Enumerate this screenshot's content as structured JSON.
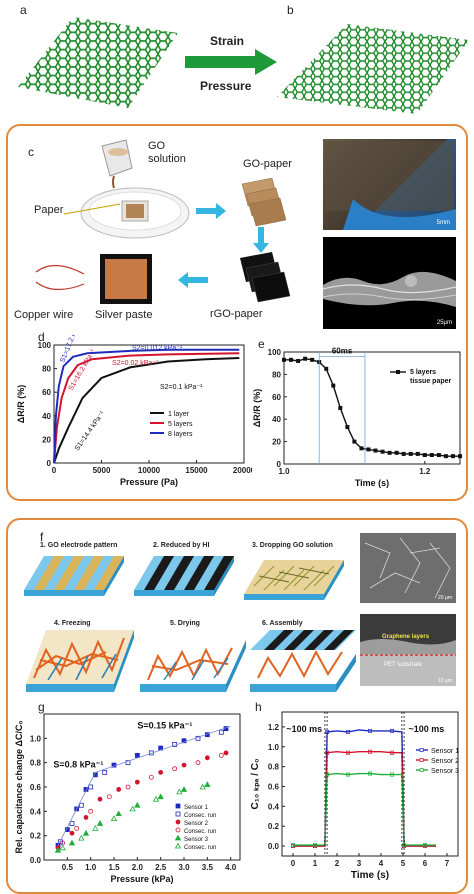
{
  "panels": {
    "a": "a",
    "b": "b",
    "c": "c",
    "d": "d",
    "e": "e",
    "f": "f",
    "g": "g",
    "h": "h"
  },
  "top": {
    "strain": "Strain",
    "pressure": "Pressure"
  },
  "c": {
    "go_solution": "GO\nsolution",
    "paper": "Paper",
    "go_paper": "GO-paper",
    "rgo_paper": "rGO-paper",
    "copper_wire": "Copper wire",
    "silver_paste": "Silver paste",
    "scale_top": "5mm",
    "scale_bottom": "25µm"
  },
  "f": {
    "step1": "1. GO electrode pattern",
    "step2": "2. Reduced by HI",
    "step3": "3. Dropping GO solution",
    "step4": "4. Freezing",
    "step5": "5. Drying",
    "step6": "6. Assembly",
    "scale_top": "20 µm",
    "scale_bottom": "10 µm",
    "graphene_layers": "Graphene layers",
    "pet_substrate": "PET substrate"
  },
  "chart_data": [
    {
      "panel": "d",
      "type": "line",
      "xlabel": "Pressure (Pa)",
      "ylabel": "ΔR/R (%)",
      "xlim": [
        0,
        20000
      ],
      "ylim": [
        0,
        100
      ],
      "xticks": [
        "0",
        "5000",
        "10000",
        "15000",
        "20000"
      ],
      "yticks": [
        "0",
        "20",
        "40",
        "60",
        "80",
        "100"
      ],
      "legend_position": "center-right",
      "series": [
        {
          "name": "1 layer",
          "color": "#111111",
          "x": [
            0,
            500,
            1500,
            3000,
            5000,
            8000,
            12000,
            16000,
            19500
          ],
          "y": [
            0,
            12,
            30,
            55,
            72,
            81,
            86,
            88,
            89
          ]
        },
        {
          "name": "5 layers",
          "color": "#d4142e",
          "x": [
            0,
            300,
            800,
            1500,
            2500,
            4000,
            8000,
            12000,
            19500
          ],
          "y": [
            0,
            30,
            55,
            72,
            83,
            88,
            91,
            92,
            93
          ]
        },
        {
          "name": "8 layers",
          "color": "#1f2bbf",
          "x": [
            0,
            200,
            500,
            1000,
            2000,
            3500,
            8000,
            12000,
            19500
          ],
          "y": [
            0,
            40,
            65,
            82,
            90,
            93,
            95,
            96,
            96
          ]
        }
      ],
      "annotations": [
        {
          "text": "S2=0.012 kPa⁻¹",
          "color": "#1f2bbf"
        },
        {
          "text": "S2=0.02 kPa⁻¹",
          "color": "#d4142e"
        },
        {
          "text": "S2=0.1 kPa⁻¹",
          "color": "#111111"
        },
        {
          "text": "S1=17.2 kPa⁻¹",
          "color": "#1f2bbf"
        },
        {
          "text": "S1=16.2 kPa⁻¹",
          "color": "#d4142e"
        },
        {
          "text": "S1=14.4 kPa⁻¹",
          "color": "#111111"
        }
      ]
    },
    {
      "panel": "e",
      "type": "line",
      "xlabel": "Time (s)",
      "ylabel": "ΔR/R (%)",
      "xlim": [
        1.0,
        1.25
      ],
      "ylim": [
        0,
        100
      ],
      "xticks": [
        "1.0",
        "1.2"
      ],
      "yticks": [
        "0",
        "20",
        "40",
        "60",
        "80",
        "100"
      ],
      "legend_position": "top-right",
      "series": [
        {
          "name": "5 layers\ntissue paper",
          "color": "#111111",
          "x": [
            1.0,
            1.01,
            1.02,
            1.03,
            1.04,
            1.05,
            1.06,
            1.07,
            1.08,
            1.09,
            1.1,
            1.11,
            1.12,
            1.13,
            1.14,
            1.15,
            1.16,
            1.17,
            1.18,
            1.19,
            1.2,
            1.21,
            1.22,
            1.23,
            1.24,
            1.25
          ],
          "y": [
            93,
            93,
            92,
            94,
            93,
            91,
            85,
            70,
            50,
            33,
            20,
            14,
            13,
            12,
            11,
            10,
            10,
            9,
            9,
            9,
            8,
            8,
            8,
            7,
            7,
            7
          ]
        }
      ],
      "annotations": [
        {
          "text": "60ms"
        }
      ]
    },
    {
      "panel": "g",
      "type": "scatter",
      "xlabel": "Pressure (kPa)",
      "ylabel": "Rel. capacitance change ΔC/C₀",
      "xlim": [
        0,
        4.2
      ],
      "ylim": [
        0,
        1.2
      ],
      "xticks": [
        "0.5",
        "1.0",
        "1.5",
        "2.0",
        "2.5",
        "3.0",
        "3.5",
        "4.0"
      ],
      "yticks": [
        "0.0",
        "0.2",
        "0.4",
        "0.6",
        "0.8",
        "1.0"
      ],
      "legend_position": "bottom-right",
      "series": [
        {
          "name": "Sensor 1",
          "color": "#1f2bbf",
          "marker": "filled-square",
          "x": [
            0.3,
            0.5,
            0.7,
            0.9,
            1.1,
            1.5,
            2.0,
            2.5,
            3.0,
            3.5,
            3.9
          ],
          "y": [
            0.12,
            0.25,
            0.42,
            0.58,
            0.7,
            0.78,
            0.86,
            0.92,
            0.98,
            1.03,
            1.08
          ]
        },
        {
          "name": "Consec. run",
          "color": "#1f2bbf",
          "marker": "open-square",
          "x": [
            0.35,
            0.6,
            0.8,
            1.0,
            1.3,
            1.8,
            2.3,
            2.8,
            3.3,
            3.8
          ],
          "y": [
            0.15,
            0.3,
            0.45,
            0.6,
            0.72,
            0.8,
            0.88,
            0.95,
            1.0,
            1.05
          ]
        },
        {
          "name": "Sensor 2",
          "color": "#d4142e",
          "marker": "filled-circle",
          "x": [
            0.3,
            0.6,
            0.9,
            1.2,
            1.6,
            2.0,
            2.5,
            3.0,
            3.5,
            3.9
          ],
          "y": [
            0.1,
            0.22,
            0.35,
            0.5,
            0.58,
            0.64,
            0.72,
            0.78,
            0.84,
            0.88
          ]
        },
        {
          "name": "Consec. run",
          "color": "#d4142e",
          "marker": "open-circle",
          "x": [
            0.4,
            0.7,
            1.0,
            1.4,
            1.8,
            2.3,
            2.8,
            3.3,
            3.8
          ],
          "y": [
            0.14,
            0.26,
            0.4,
            0.52,
            0.6,
            0.68,
            0.75,
            0.8,
            0.86
          ]
        },
        {
          "name": "Sensor 3",
          "color": "#1fae3a",
          "marker": "filled-triangle",
          "x": [
            0.3,
            0.6,
            0.9,
            1.2,
            1.6,
            2.0,
            2.5,
            3.0,
            3.5
          ],
          "y": [
            0.08,
            0.14,
            0.22,
            0.3,
            0.38,
            0.45,
            0.52,
            0.58,
            0.62
          ]
        },
        {
          "name": "Consec. run",
          "color": "#1fae3a",
          "marker": "open-triangle",
          "x": [
            0.4,
            0.8,
            1.1,
            1.5,
            1.9,
            2.4,
            2.9,
            3.4
          ],
          "y": [
            0.1,
            0.18,
            0.26,
            0.34,
            0.42,
            0.5,
            0.56,
            0.6
          ]
        }
      ],
      "annotations": [
        {
          "text": "S=0.15 kPa⁻¹"
        },
        {
          "text": "S=0.8 kPa⁻¹"
        }
      ]
    },
    {
      "panel": "h",
      "type": "line",
      "xlabel": "Time (s)",
      "ylabel": "C₁₀ ₖₚₐ / C₀",
      "xlim": [
        -0.5,
        7.5
      ],
      "ylim": [
        -0.1,
        1.35
      ],
      "xticks": [
        "0",
        "1",
        "2",
        "3",
        "4",
        "5",
        "6",
        "7"
      ],
      "yticks": [
        "0.0",
        "0.2",
        "0.4",
        "0.6",
        "0.8",
        "1.0",
        "1.2"
      ],
      "legend_position": "center-right",
      "series": [
        {
          "name": "Sensor 1",
          "color": "#1f2bbf",
          "x": [
            0,
            0.5,
            1.0,
            1.45,
            1.55,
            2.0,
            2.5,
            3.0,
            3.5,
            4.0,
            4.5,
            4.95,
            5.05,
            5.5,
            6.0,
            6.5
          ],
          "y": [
            0,
            0,
            0,
            0,
            1.15,
            1.16,
            1.15,
            1.17,
            1.16,
            1.16,
            1.16,
            1.15,
            0,
            0,
            0,
            0
          ]
        },
        {
          "name": "Sensor 2",
          "color": "#d4142e",
          "x": [
            0,
            0.5,
            1.0,
            1.45,
            1.55,
            2.0,
            2.5,
            3.0,
            3.5,
            4.0,
            4.5,
            4.95,
            5.05,
            5.5,
            6.0,
            6.5
          ],
          "y": [
            0,
            0,
            0,
            0,
            0.94,
            0.95,
            0.94,
            0.95,
            0.95,
            0.95,
            0.94,
            0.94,
            0,
            0,
            0,
            0
          ]
        },
        {
          "name": "Sensor 3",
          "color": "#1fae3a",
          "x": [
            0,
            0.5,
            1.0,
            1.45,
            1.55,
            2.0,
            2.5,
            3.0,
            3.5,
            4.0,
            4.5,
            4.95,
            5.05,
            5.5,
            6.0,
            6.5
          ],
          "y": [
            0.01,
            0.01,
            0.01,
            0.01,
            0.72,
            0.73,
            0.72,
            0.73,
            0.73,
            0.72,
            0.72,
            0.72,
            0.01,
            0.01,
            0.01,
            0.01
          ]
        }
      ],
      "annotations": [
        {
          "text": "~100 ms"
        },
        {
          "text": "~100 ms"
        }
      ]
    }
  ]
}
